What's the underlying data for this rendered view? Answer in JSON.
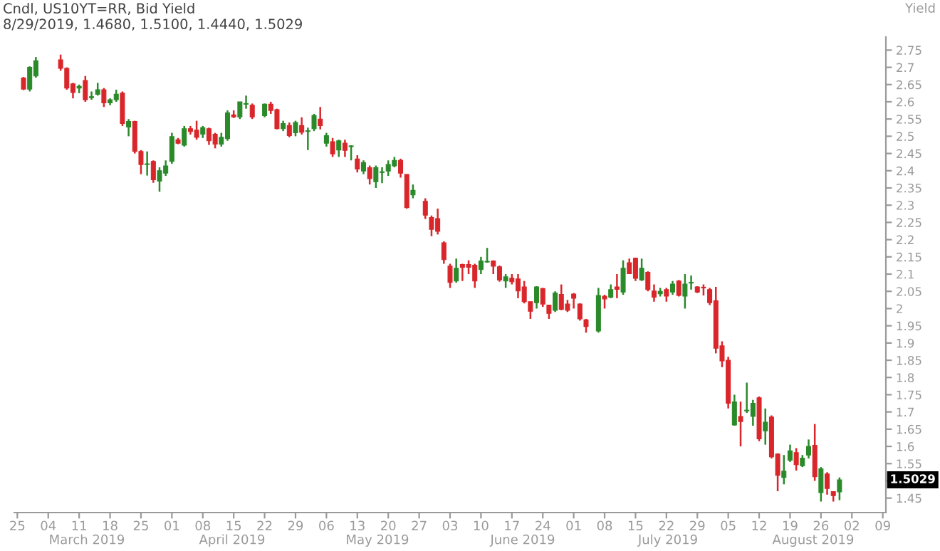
{
  "chart_data": {
    "type": "candlestick",
    "title": "Cndl, US10YT=RR, Bid Yield",
    "subtitle": "8/29/2019, 1.4680, 1.5100, 1.4440, 1.5029",
    "ylabel": "Yield",
    "categories": [
      "25",
      null,
      null,
      null,
      null,
      "04",
      null,
      null,
      null,
      null,
      "11",
      null,
      null,
      null,
      null,
      "18",
      null,
      null,
      null,
      null,
      "25",
      null,
      null,
      null,
      null,
      "01",
      null,
      null,
      null,
      null,
      "08",
      null,
      null,
      null,
      null,
      "15",
      null,
      null,
      null,
      null,
      "22",
      null,
      null,
      null,
      null,
      "29",
      null,
      null,
      null,
      null,
      "06",
      null,
      null,
      null,
      null,
      "13",
      null,
      null,
      null,
      null,
      "20",
      null,
      null,
      null,
      null,
      "27",
      null,
      null,
      null,
      null,
      "03",
      null,
      null,
      null,
      null,
      "10",
      null,
      null,
      null,
      null,
      "17",
      null,
      null,
      null,
      null,
      "24",
      null,
      null,
      null,
      null,
      "01",
      null,
      null,
      null,
      null,
      "08",
      null,
      null,
      null,
      null,
      "15",
      null,
      null,
      null,
      null,
      "22",
      null,
      null,
      null,
      null,
      "29",
      null,
      null,
      null,
      null,
      "05",
      null,
      null,
      null,
      null,
      "12",
      null,
      null,
      null,
      null,
      "19",
      null,
      null,
      null,
      null,
      "26",
      null,
      null,
      null,
      null,
      "02",
      null,
      null,
      null,
      null,
      "09"
    ],
    "ohlc": [
      null,
      [
        2.669,
        2.672,
        2.634,
        2.637
      ],
      [
        2.637,
        2.703,
        2.63,
        2.7
      ],
      [
        2.675,
        2.73,
        2.67,
        2.719
      ],
      null,
      null,
      null,
      [
        2.722,
        2.737,
        2.69,
        2.697
      ],
      [
        2.697,
        2.7,
        2.635,
        2.64
      ],
      [
        2.652,
        2.655,
        2.61,
        2.627
      ],
      [
        2.64,
        2.65,
        2.625,
        2.645
      ],
      [
        2.662,
        2.675,
        2.6,
        2.606
      ],
      [
        2.612,
        2.63,
        2.606,
        2.615
      ],
      [
        2.622,
        2.655,
        2.618,
        2.635
      ],
      [
        2.635,
        2.64,
        2.585,
        2.597
      ],
      [
        2.597,
        2.61,
        2.59,
        2.606
      ],
      [
        2.606,
        2.635,
        2.6,
        2.622
      ],
      [
        2.625,
        2.63,
        2.53,
        2.537
      ],
      [
        2.527,
        2.55,
        2.5,
        2.543
      ],
      [
        2.543,
        2.545,
        2.45,
        2.456
      ],
      [
        2.456,
        2.46,
        2.39,
        2.418
      ],
      [
        2.418,
        2.456,
        2.386,
        2.42
      ],
      [
        2.427,
        2.43,
        2.365,
        2.374
      ],
      [
        2.37,
        2.41,
        2.339,
        2.4
      ],
      [
        2.393,
        2.43,
        2.385,
        2.414
      ],
      [
        2.427,
        2.51,
        2.42,
        2.499
      ],
      [
        2.49,
        2.495,
        2.477,
        2.48
      ],
      [
        2.474,
        2.53,
        2.47,
        2.522
      ],
      [
        2.522,
        2.53,
        2.505,
        2.514
      ],
      [
        2.518,
        2.545,
        2.49,
        2.497
      ],
      [
        2.506,
        2.53,
        2.495,
        2.525
      ],
      [
        2.522,
        2.525,
        2.475,
        2.487
      ],
      [
        2.506,
        2.51,
        2.465,
        2.477
      ],
      [
        2.477,
        2.51,
        2.47,
        2.497
      ],
      [
        2.493,
        2.575,
        2.487,
        2.568
      ],
      [
        2.562,
        2.575,
        2.553,
        2.556
      ],
      [
        2.556,
        2.6,
        2.55,
        2.6
      ],
      [
        2.593,
        2.618,
        2.58,
        2.595
      ],
      [
        2.59,
        2.595,
        2.55,
        2.556
      ],
      null,
      [
        2.56,
        2.595,
        2.555,
        2.593
      ],
      [
        2.593,
        2.6,
        2.565,
        2.575
      ],
      [
        2.577,
        2.58,
        2.52,
        2.522
      ],
      [
        2.522,
        2.545,
        2.515,
        2.537
      ],
      [
        2.531,
        2.54,
        2.497,
        2.502
      ],
      [
        2.51,
        2.545,
        2.5,
        2.54
      ],
      [
        2.531,
        2.555,
        2.505,
        2.512
      ],
      [
        2.514,
        2.525,
        2.46,
        2.516
      ],
      [
        2.522,
        2.565,
        2.515,
        2.56
      ],
      [
        2.55,
        2.585,
        2.52,
        2.531
      ],
      [
        2.48,
        2.51,
        2.47,
        2.502
      ],
      [
        2.484,
        2.495,
        2.44,
        2.449
      ],
      [
        2.46,
        2.49,
        2.44,
        2.487
      ],
      [
        2.48,
        2.49,
        2.44,
        2.459
      ],
      [
        2.47,
        2.474,
        2.43,
        2.472
      ],
      [
        2.434,
        2.445,
        2.395,
        2.405
      ],
      [
        2.399,
        2.43,
        2.39,
        2.424
      ],
      [
        2.409,
        2.415,
        2.36,
        2.377
      ],
      [
        2.368,
        2.415,
        2.35,
        2.409
      ],
      [
        2.395,
        2.41,
        2.364,
        2.397
      ],
      [
        2.399,
        2.43,
        2.385,
        2.418
      ],
      [
        2.414,
        2.44,
        2.41,
        2.43
      ],
      [
        2.43,
        2.435,
        2.38,
        2.393
      ],
      [
        2.389,
        2.39,
        2.29,
        2.293
      ],
      [
        2.33,
        2.36,
        2.32,
        2.343
      ],
      null,
      [
        2.311,
        2.32,
        2.26,
        2.271
      ],
      [
        2.264,
        2.27,
        2.21,
        2.23
      ],
      [
        2.261,
        2.29,
        2.215,
        2.224
      ],
      [
        2.191,
        2.195,
        2.13,
        2.142
      ],
      [
        2.123,
        2.13,
        2.06,
        2.076
      ],
      [
        2.08,
        2.145,
        2.075,
        2.117
      ],
      [
        2.128,
        2.13,
        2.08,
        2.12
      ],
      [
        2.128,
        2.14,
        2.1,
        2.12
      ],
      [
        2.126,
        2.13,
        2.06,
        2.08
      ],
      [
        2.113,
        2.15,
        2.1,
        2.138
      ],
      [
        2.135,
        2.176,
        2.133,
        2.136
      ],
      [
        2.138,
        2.14,
        2.1,
        2.123
      ],
      [
        2.121,
        2.125,
        2.078,
        2.083
      ],
      [
        2.08,
        2.1,
        2.06,
        2.092
      ],
      [
        2.088,
        2.1,
        2.07,
        2.078
      ],
      [
        2.086,
        2.1,
        2.03,
        2.051
      ],
      [
        2.063,
        2.08,
        2.015,
        2.02
      ],
      [
        2.02,
        2.02,
        1.97,
        1.992
      ],
      [
        2.017,
        2.065,
        2.0,
        2.063
      ],
      [
        2.058,
        2.06,
        2.005,
        2.013
      ],
      [
        2.01,
        2.01,
        1.97,
        1.986
      ],
      [
        1.995,
        2.05,
        1.99,
        2.045
      ],
      [
        2.041,
        2.07,
        1.995,
        1.998
      ],
      [
        2.013,
        2.025,
        1.99,
        1.995
      ],
      [
        2.042,
        2.045,
        2.0,
        2.03
      ],
      [
        2.013,
        2.015,
        1.965,
        1.97
      ],
      [
        1.967,
        1.97,
        1.93,
        1.948
      ],
      null,
      [
        1.935,
        2.06,
        1.93,
        2.038
      ],
      [
        2.036,
        2.04,
        2.0,
        2.028
      ],
      [
        2.033,
        2.07,
        2.03,
        2.055
      ],
      [
        2.063,
        2.1,
        2.03,
        2.056
      ],
      [
        2.048,
        2.14,
        2.04,
        2.117
      ],
      [
        2.133,
        2.145,
        2.1,
        2.101
      ],
      [
        2.146,
        2.148,
        2.08,
        2.088
      ],
      [
        2.083,
        2.145,
        2.08,
        2.117
      ],
      [
        2.105,
        2.108,
        2.05,
        2.055
      ],
      [
        2.051,
        2.07,
        2.02,
        2.033
      ],
      [
        2.043,
        2.06,
        2.035,
        2.05
      ],
      [
        2.055,
        2.06,
        2.02,
        2.036
      ],
      [
        2.048,
        2.08,
        2.04,
        2.071
      ],
      [
        2.08,
        2.083,
        2.035,
        2.038
      ],
      [
        2.036,
        2.1,
        2.0,
        2.071
      ],
      [
        2.074,
        2.096,
        2.055,
        2.076
      ],
      [
        2.063,
        2.065,
        2.045,
        2.048
      ],
      [
        2.061,
        2.07,
        2.038,
        2.06
      ],
      [
        2.055,
        2.06,
        2.01,
        2.017
      ],
      [
        2.023,
        2.063,
        1.87,
        1.885
      ],
      [
        1.892,
        1.905,
        1.83,
        1.848
      ],
      [
        1.85,
        1.86,
        1.71,
        1.725
      ],
      [
        1.662,
        1.75,
        1.66,
        1.729
      ],
      [
        1.687,
        1.73,
        1.6,
        1.672
      ],
      [
        1.703,
        1.785,
        1.697,
        1.705
      ],
      [
        1.687,
        1.735,
        1.66,
        1.725
      ],
      [
        1.741,
        1.745,
        1.615,
        1.622
      ],
      [
        1.645,
        1.71,
        1.605,
        1.67
      ],
      [
        1.685,
        1.69,
        1.565,
        1.57
      ],
      [
        1.578,
        1.58,
        1.47,
        1.516
      ],
      [
        1.51,
        1.575,
        1.49,
        1.528
      ],
      [
        1.56,
        1.605,
        1.555,
        1.587
      ],
      [
        1.582,
        1.595,
        1.53,
        1.547
      ],
      [
        1.544,
        1.575,
        1.54,
        1.566
      ],
      [
        1.575,
        1.62,
        1.565,
        1.6
      ],
      [
        1.603,
        1.665,
        1.5,
        1.512
      ],
      [
        1.466,
        1.54,
        1.44,
        1.535
      ],
      [
        1.52,
        1.525,
        1.46,
        1.478
      ],
      [
        1.469,
        1.47,
        1.44,
        1.457
      ],
      [
        1.468,
        1.51,
        1.444,
        1.5029
      ],
      null,
      null,
      null,
      null,
      null,
      null,
      null
    ],
    "colors": [
      null,
      "#d9262b",
      "#2a8a2a",
      "#2a8a2a",
      null,
      null,
      null,
      "#d9262b",
      "#d9262b",
      "#d9262b",
      "#2a8a2a",
      "#d9262b",
      "#2a8a2a",
      "#2a8a2a",
      "#d9262b",
      "#2a8a2a",
      "#2a8a2a",
      "#d9262b",
      "#2a8a2a",
      "#d9262b",
      "#d9262b",
      "#2a8a2a",
      "#d9262b",
      "#2a8a2a",
      "#2a8a2a",
      "#2a8a2a",
      "#d9262b",
      "#2a8a2a",
      "#d9262b",
      "#d9262b",
      "#2a8a2a",
      "#d9262b",
      "#d9262b",
      "#2a8a2a",
      "#2a8a2a",
      "#d9262b",
      "#2a8a2a",
      "#2a8a2a",
      "#d9262b",
      null,
      "#2a8a2a",
      "#d9262b",
      "#d9262b",
      "#2a8a2a",
      "#d9262b",
      "#2a8a2a",
      "#d9262b",
      "#2a8a2a",
      "#2a8a2a",
      "#d9262b",
      "#2a8a2a",
      "#d9262b",
      "#2a8a2a",
      "#d9262b",
      "#2a8a2a",
      "#d9262b",
      "#2a8a2a",
      "#d9262b",
      "#2a8a2a",
      "#2a8a2a",
      "#2a8a2a",
      "#2a8a2a",
      "#d9262b",
      "#d9262b",
      "#2a8a2a",
      null,
      "#d9262b",
      "#d9262b",
      "#d9262b",
      "#d9262b",
      "#d9262b",
      "#2a8a2a",
      "#d9262b",
      "#d9262b",
      "#d9262b",
      "#2a8a2a",
      "#2a8a2a",
      "#d9262b",
      "#d9262b",
      "#2a8a2a",
      "#d9262b",
      "#d9262b",
      "#d9262b",
      "#d9262b",
      "#2a8a2a",
      "#d9262b",
      "#d9262b",
      "#2a8a2a",
      "#d9262b",
      "#d9262b",
      "#d9262b",
      "#d9262b",
      "#d9262b",
      null,
      "#2a8a2a",
      "#d9262b",
      "#2a8a2a",
      "#d9262b",
      "#2a8a2a",
      "#d9262b",
      "#d9262b",
      "#2a8a2a",
      "#d9262b",
      "#d9262b",
      "#2a8a2a",
      "#d9262b",
      "#2a8a2a",
      "#d9262b",
      "#2a8a2a",
      "#2a8a2a",
      "#d9262b",
      "#d9262b",
      "#d9262b",
      "#d9262b",
      "#d9262b",
      "#d9262b",
      "#2a8a2a",
      "#d9262b",
      "#2a8a2a",
      "#2a8a2a",
      "#d9262b",
      "#2a8a2a",
      "#d9262b",
      "#d9262b",
      "#2a8a2a",
      "#2a8a2a",
      "#d9262b",
      "#2a8a2a",
      "#2a8a2a",
      "#d9262b",
      "#2a8a2a",
      "#d9262b",
      "#d9262b",
      "#2a8a2a",
      null,
      null,
      null,
      null,
      null,
      null,
      null
    ],
    "ylim": [
      1.408,
      2.788
    ],
    "yticks": [
      1.45,
      {
        "value": 1.5,
        "label": null
      },
      1.55,
      1.6,
      1.65,
      1.7,
      1.75,
      1.8,
      1.85,
      1.9,
      1.95,
      2,
      2.05,
      2.1,
      2.15,
      2.2,
      2.25,
      2.3,
      2.35,
      2.4,
      2.45,
      2.5,
      2.55,
      2.6,
      2.65,
      2.7,
      2.75
    ],
    "annotations": [
      "March 2019",
      "April 2019",
      "May 2019",
      "June 2019",
      "July 2019",
      "August 2019",
      {
        "text": "1.5029",
        "y": 1.5029
      }
    ]
  }
}
